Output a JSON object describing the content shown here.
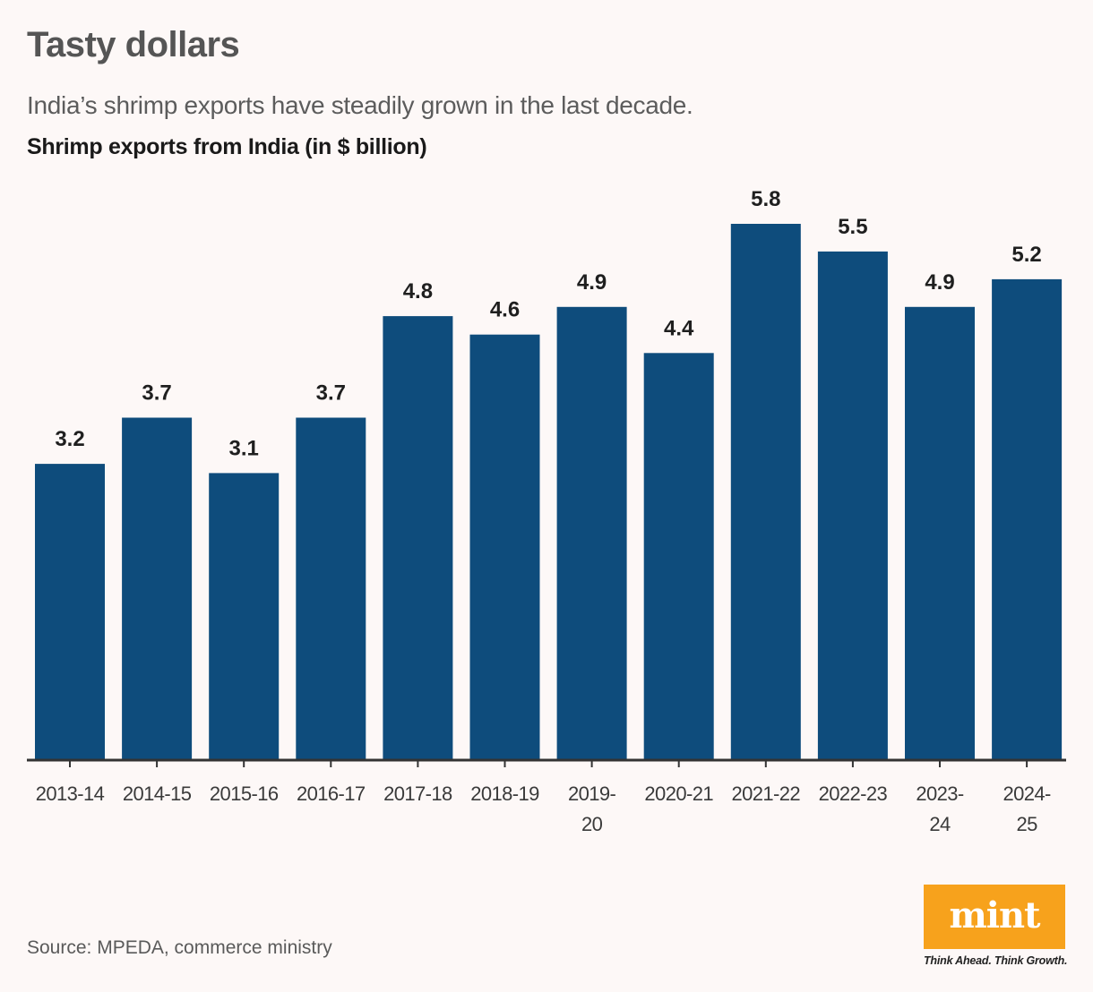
{
  "header": {
    "title": "Tasty dollars",
    "subtitle": "India’s shrimp exports have steadily grown in the last decade.",
    "chart_heading": "Shrimp exports from India (in $ billion)"
  },
  "footer": {
    "source": "Source: MPEDA, commerce ministry",
    "logo_text": "mint",
    "tagline": "Think Ahead. Think Growth."
  },
  "colors": {
    "bar": "#0e4c7c",
    "axis": "#333333",
    "label": "#1f1f1f",
    "tick_label": "#3a3a3a",
    "background": "#fdf8f7",
    "logo": "#f7a21c"
  },
  "chart_data": {
    "type": "bar",
    "title": "Shrimp exports from India (in $ billion)",
    "xlabel": "",
    "ylabel": "",
    "ylim": [
      0,
      5.8
    ],
    "grid": false,
    "legend": "none",
    "categories": [
      "2013-14",
      "2014-15",
      "2015-16",
      "2016-17",
      "2017-18",
      "2018-19",
      "2019-20",
      "2020-21",
      "2021-22",
      "2022-23",
      "2023-24",
      "2024-25"
    ],
    "category_display": [
      [
        "2013-14"
      ],
      [
        "2014-15"
      ],
      [
        "2015-16"
      ],
      [
        "2016-17"
      ],
      [
        "2017-18"
      ],
      [
        "2018-19"
      ],
      [
        "2019-",
        "20"
      ],
      [
        "2020-21"
      ],
      [
        "2021-22"
      ],
      [
        "2022-23"
      ],
      [
        "2023-",
        "24"
      ],
      [
        "2024-",
        "25"
      ]
    ],
    "values": [
      3.2,
      3.7,
      3.1,
      3.7,
      4.8,
      4.6,
      4.9,
      4.4,
      5.8,
      5.5,
      4.9,
      5.2
    ],
    "value_labels": [
      "3.2",
      "3.7",
      "3.1",
      "3.7",
      "4.8",
      "4.6",
      "4.9",
      "4.4",
      "5.8",
      "5.5",
      "4.9",
      "5.2"
    ]
  }
}
